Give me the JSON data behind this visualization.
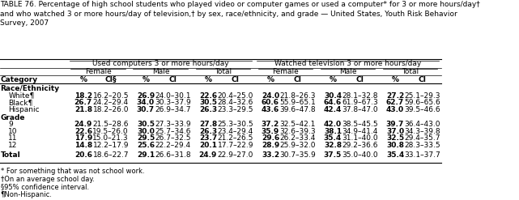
{
  "title": "TABLE 76. Percentage of high school students who played video or computer games or used a computer* for 3 or more hours/day†\nand who watched 3 or more hours/day of television,† by sex, race/ethnicity, and grade — United States, Youth Risk Behavior\nSurvey, 2007",
  "col_header_row1": [
    "Used computers 3 or more hours/day",
    "Watched television 3 or more hours/day"
  ],
  "col_header_row2": [
    "Female",
    "Male",
    "Total",
    "Female",
    "Male",
    "Total"
  ],
  "col_header_row3": [
    "%",
    "CI§",
    "%",
    "CI",
    "%",
    "CI",
    "%",
    "CI",
    "%",
    "CI",
    "%",
    "CI"
  ],
  "category_label": "Category",
  "sections": [
    {
      "name": "Race/Ethnicity",
      "rows": [
        {
          "label": "White¶",
          "data": [
            "18.2",
            "16.2–20.5",
            "26.9",
            "24.0–30.1",
            "22.6",
            "20.4–25.0",
            "24.0",
            "21.8–26.3",
            "30.4",
            "28.1–32.8",
            "27.2",
            "25.1–29.3"
          ]
        },
        {
          "label": "Black¶",
          "data": [
            "26.7",
            "24.2–29.4",
            "34.0",
            "30.3–37.9",
            "30.5",
            "28.4–32.6",
            "60.6",
            "55.9–65.1",
            "64.6",
            "61.9–67.3",
            "62.7",
            "59.6–65.6"
          ]
        },
        {
          "label": "Hispanic",
          "data": [
            "21.8",
            "18.2–26.0",
            "30.7",
            "26.9–34.7",
            "26.3",
            "23.3–29.5",
            "43.6",
            "39.6–47.8",
            "42.4",
            "37.8–47.0",
            "43.0",
            "39.5–46.6"
          ]
        }
      ]
    },
    {
      "name": "Grade",
      "rows": [
        {
          "label": "9",
          "data": [
            "24.9",
            "21.5–28.6",
            "30.5",
            "27.3–33.9",
            "27.8",
            "25.3–30.5",
            "37.2",
            "32.5–42.1",
            "42.0",
            "38.5–45.5",
            "39.7",
            "36.4–43.0"
          ]
        },
        {
          "label": "10",
          "data": [
            "22.6",
            "19.5–26.0",
            "30.0",
            "25.7–34.6",
            "26.3",
            "23.4–29.4",
            "35.9",
            "32.6–39.3",
            "38.1",
            "34.9–41.4",
            "37.0",
            "34.3–39.8"
          ]
        },
        {
          "label": "11",
          "data": [
            "17.9",
            "15.0–21.3",
            "29.5",
            "26.7–32.5",
            "23.7",
            "21.2–26.5",
            "29.6",
            "26.2–33.4",
            "35.4",
            "31.1–40.0",
            "32.5",
            "29.4–35.7"
          ]
        },
        {
          "label": "12",
          "data": [
            "14.8",
            "12.2–17.9",
            "25.6",
            "22.2–29.4",
            "20.1",
            "17.7–22.9",
            "28.9",
            "25.9–32.0",
            "32.8",
            "29.2–36.6",
            "30.8",
            "28.3–33.5"
          ]
        }
      ]
    }
  ],
  "total_row": {
    "label": "Total",
    "data": [
      "20.6",
      "18.6–22.7",
      "29.1",
      "26.6–31.8",
      "24.9",
      "22.9–27.0",
      "33.2",
      "30.7–35.9",
      "37.5",
      "35.0–40.0",
      "35.4",
      "33.1–37.7"
    ]
  },
  "footnotes": [
    "* For something that was not school work.",
    "†On an average school day.",
    "§95% confidence interval.",
    "¶Non-Hispanic."
  ],
  "bg_color": "white",
  "text_color": "black",
  "font_size": 6.5,
  "title_font_size": 6.5
}
